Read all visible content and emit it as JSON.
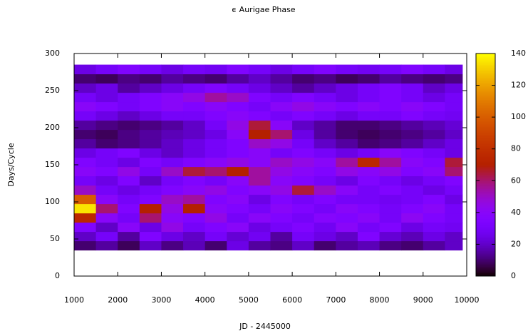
{
  "chart_data": {
    "type": "heatmap",
    "title": "ϵ Aurigae Phase",
    "x_label": "JD - 2445000",
    "y_label": "Days/Cycle",
    "xlim": [
      1000,
      10000
    ],
    "ylim": [
      0,
      300
    ],
    "xticks": [
      1000,
      2000,
      3000,
      4000,
      5000,
      6000,
      7000,
      8000,
      9000,
      10000
    ],
    "yticks": [
      0,
      50,
      100,
      150,
      200,
      250,
      300
    ],
    "cblim": [
      0,
      140
    ],
    "cbticks": [
      0,
      20,
      40,
      60,
      80,
      100,
      120,
      140
    ],
    "colormap": "gnuplot",
    "grid": false,
    "xbins": [
      1000,
      1500,
      2000,
      2500,
      3000,
      3500,
      4000,
      4500,
      5000,
      5500,
      6000,
      6500,
      7000,
      7500,
      8000,
      8500,
      9000,
      9500,
      9900
    ],
    "ybins": [
      35,
      47.5,
      60,
      72.5,
      85,
      97.5,
      110,
      122.5,
      135,
      147.5,
      160,
      172.5,
      185,
      197.5,
      210,
      222.5,
      235,
      247.5,
      260,
      272.5,
      285
    ],
    "z": [
      [
        10,
        15,
        8,
        20,
        12,
        18,
        10,
        25,
        15,
        12,
        20,
        10,
        15,
        18,
        12,
        10,
        15,
        20
      ],
      [
        20,
        30,
        15,
        35,
        25,
        20,
        30,
        22,
        28,
        15,
        30,
        25,
        20,
        35,
        22,
        18,
        25,
        20
      ],
      [
        35,
        20,
        40,
        25,
        45,
        30,
        35,
        40,
        25,
        30,
        35,
        28,
        40,
        30,
        35,
        25,
        30,
        28
      ],
      [
        75,
        40,
        30,
        60,
        40,
        35,
        45,
        30,
        40,
        35,
        30,
        38,
        35,
        40,
        30,
        42,
        35,
        30
      ],
      [
        135,
        60,
        35,
        70,
        45,
        70,
        40,
        35,
        30,
        40,
        35,
        30,
        40,
        35,
        30,
        35,
        40,
        30
      ],
      [
        100,
        40,
        30,
        35,
        50,
        55,
        35,
        40,
        25,
        35,
        30,
        35,
        30,
        30,
        28,
        30,
        35,
        25
      ],
      [
        50,
        30,
        25,
        30,
        35,
        40,
        45,
        35,
        40,
        45,
        65,
        50,
        40,
        30,
        35,
        30,
        25,
        30
      ],
      [
        30,
        25,
        35,
        20,
        30,
        35,
        30,
        40,
        55,
        40,
        35,
        30,
        25,
        35,
        30,
        25,
        30,
        35
      ],
      [
        40,
        35,
        45,
        30,
        50,
        65,
        60,
        70,
        55,
        45,
        40,
        35,
        45,
        40,
        45,
        35,
        40,
        60
      ],
      [
        35,
        30,
        25,
        35,
        30,
        35,
        40,
        45,
        40,
        50,
        45,
        40,
        55,
        75,
        55,
        40,
        35,
        65
      ],
      [
        25,
        30,
        35,
        25,
        20,
        25,
        30,
        35,
        40,
        30,
        35,
        30,
        25,
        30,
        40,
        35,
        30,
        25
      ],
      [
        15,
        10,
        12,
        15,
        20,
        25,
        30,
        35,
        50,
        45,
        30,
        20,
        15,
        10,
        12,
        15,
        20,
        25
      ],
      [
        10,
        8,
        12,
        15,
        18,
        20,
        25,
        40,
        70,
        60,
        25,
        15,
        10,
        8,
        10,
        12,
        15,
        20
      ],
      [
        15,
        12,
        10,
        12,
        15,
        20,
        30,
        45,
        65,
        40,
        20,
        15,
        10,
        10,
        12,
        15,
        18,
        22
      ],
      [
        30,
        25,
        20,
        25,
        30,
        30,
        35,
        40,
        35,
        30,
        35,
        30,
        25,
        30,
        30,
        35,
        30,
        28
      ],
      [
        40,
        35,
        30,
        35,
        40,
        35,
        40,
        35,
        30,
        40,
        45,
        40,
        35,
        40,
        35,
        40,
        35,
        30
      ],
      [
        30,
        25,
        30,
        35,
        40,
        45,
        55,
        50,
        35,
        30,
        35,
        30,
        25,
        30,
        35,
        30,
        25,
        30
      ],
      [
        20,
        25,
        15,
        20,
        25,
        30,
        35,
        30,
        25,
        20,
        15,
        20,
        25,
        30,
        35,
        30,
        20,
        25
      ],
      [
        10,
        8,
        12,
        10,
        15,
        12,
        10,
        15,
        20,
        15,
        10,
        12,
        8,
        10,
        15,
        12,
        10,
        12
      ],
      [
        25,
        30,
        35,
        30,
        25,
        30,
        28,
        35,
        30,
        25,
        30,
        35,
        30,
        28,
        30,
        35,
        30,
        25
      ]
    ]
  }
}
